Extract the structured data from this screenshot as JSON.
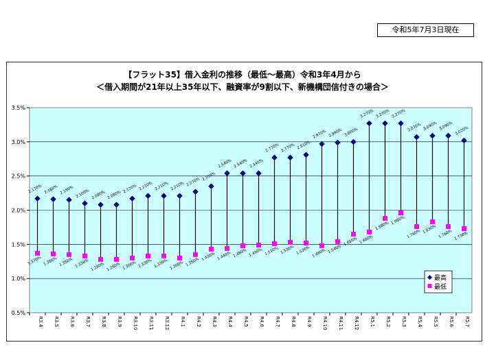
{
  "report_date": "令和5年7月3日現在",
  "colors": {
    "plot_bg": "#ccffff",
    "max": "#000080",
    "min": "#ff00ff"
  },
  "chart_data": {
    "type": "range",
    "title": "【フラット35】借入金利の推移（最低～最高）令和3年4月から",
    "subtitle": "＜借入期間が21年以上35年以下、融資率が9割以下、新機構団信付きの場合＞",
    "ylim": [
      0.5,
      3.5
    ],
    "yticks": [
      "0.5%",
      "1.0%",
      "1.5%",
      "2.0%",
      "2.5%",
      "3.0%",
      "3.5%"
    ],
    "ytick_values": [
      0.5,
      1.0,
      1.5,
      2.0,
      2.5,
      3.0,
      3.5
    ],
    "categories": [
      "R3.4",
      "R3.5",
      "R3.6",
      "R3.7",
      "R3.8",
      "R3.9",
      "R3.10",
      "R3.11",
      "R3.12",
      "R4.1",
      "R4.2",
      "R4.3",
      "R4.4",
      "R4.5",
      "R4.6",
      "R4.7",
      "R4.8",
      "R4.9",
      "R4.10",
      "R4.11",
      "R4.12",
      "R5.1",
      "R5.2",
      "R5.3",
      "R5.4",
      "R5.5",
      "R5.6",
      "R5.7"
    ],
    "series": [
      {
        "name": "最高",
        "values": [
          2.17,
          2.16,
          2.15,
          2.1,
          2.08,
          2.08,
          2.17,
          2.21,
          2.21,
          2.21,
          2.27,
          2.35,
          2.54,
          2.54,
          2.54,
          2.77,
          2.77,
          2.81,
          2.97,
          2.99,
          3.0,
          3.27,
          3.27,
          3.27,
          3.07,
          3.09,
          3.09,
          3.02
        ],
        "labels": [
          "2.170%",
          "2.160%",
          "2.150%",
          "2.100%",
          "2.080%",
          "2.080%",
          "2.170%",
          "2.210%",
          "2.210%",
          "2.210%",
          "2.270%",
          "2.350%",
          "2.540%",
          "2.540%",
          "2.540%",
          "2.770%",
          "2.770%",
          "2.810%",
          "2.970%",
          "2.990%",
          "3.000%",
          "3.270%",
          "3.270%",
          "3.270%",
          "3.070%",
          "3.090%",
          "3.090%",
          "3.020%"
        ]
      },
      {
        "name": "最低",
        "values": [
          1.37,
          1.36,
          1.35,
          1.33,
          1.28,
          1.28,
          1.3,
          1.33,
          1.33,
          1.3,
          1.35,
          1.43,
          1.44,
          1.48,
          1.49,
          1.51,
          1.53,
          1.52,
          1.48,
          1.54,
          1.65,
          1.68,
          1.88,
          1.96,
          1.76,
          1.83,
          1.76,
          1.73
        ],
        "labels": [
          "1.370%",
          "1.360%",
          "1.350%",
          "1.330%",
          "1.280%",
          "1.280%",
          "1.300%",
          "1.330%",
          "1.330%",
          "1.300%",
          "1.350%",
          "1.430%",
          "1.440%",
          "1.480%",
          "1.490%",
          "1.510%",
          "1.530%",
          "1.520%",
          "1.480%",
          "1.540%",
          "1.650%",
          "1.680%",
          "1.880%",
          "1.960%",
          "1.760%",
          "1.830%",
          "1.760%",
          "1.730%"
        ]
      }
    ],
    "legend": [
      "最高",
      "最低"
    ],
    "legend_position": "bottom-right"
  }
}
